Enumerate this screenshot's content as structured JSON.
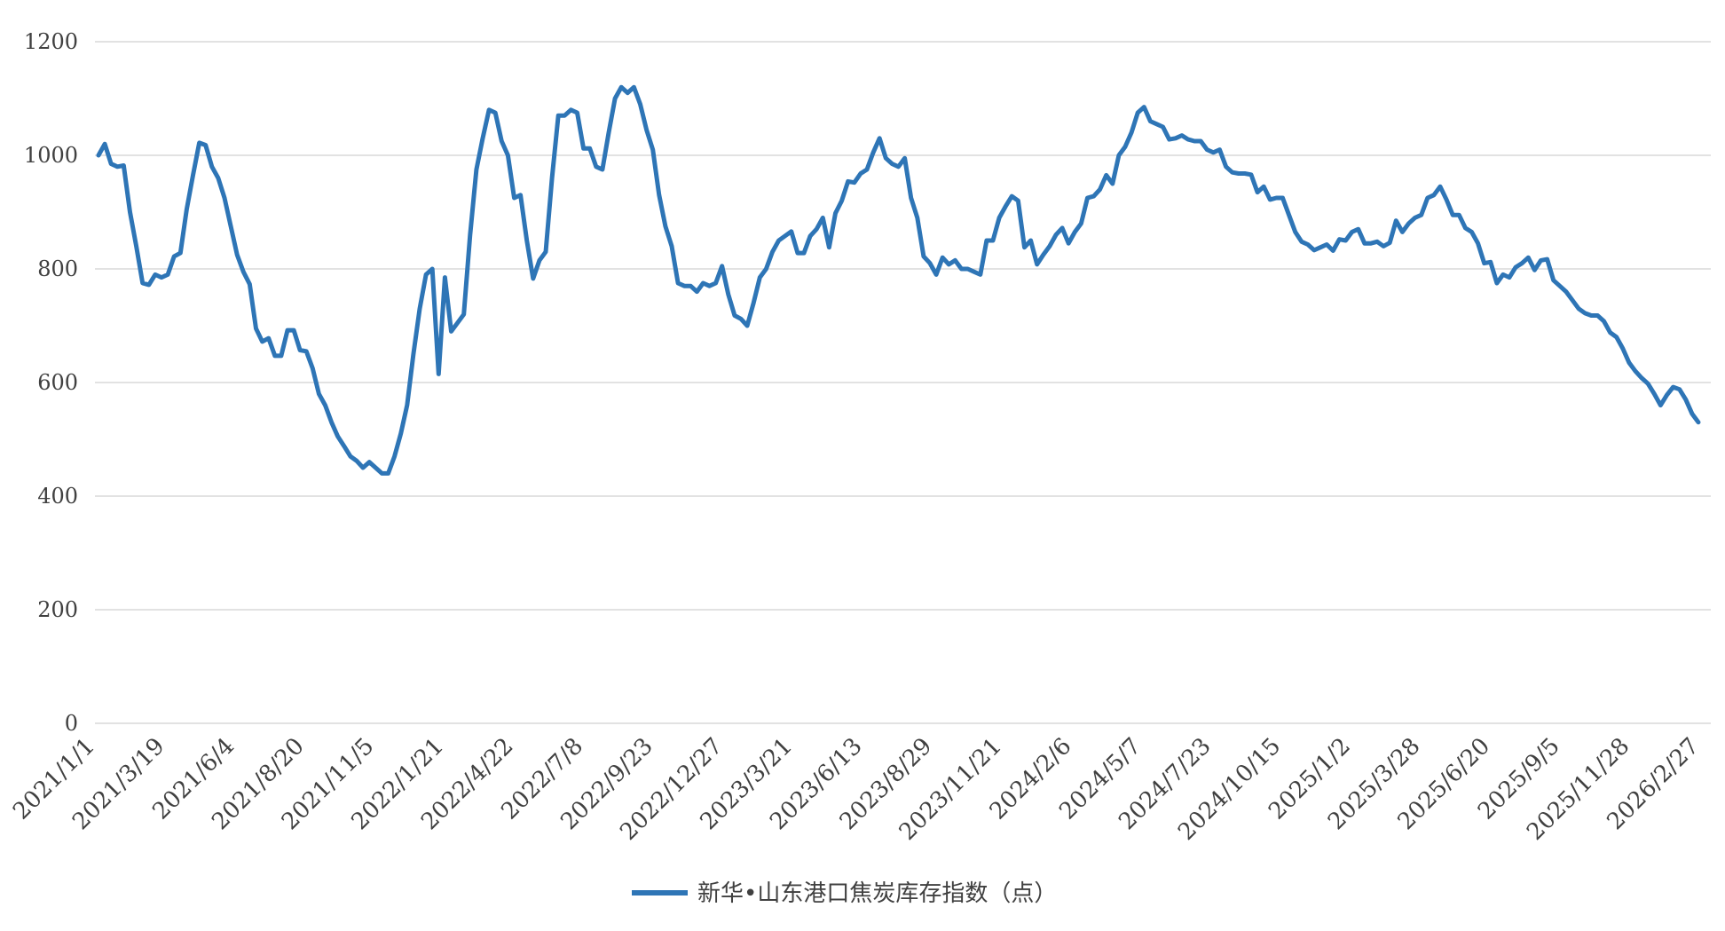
{
  "chart_data": {
    "type": "line",
    "title": "",
    "xlabel": "",
    "ylabel": "",
    "ylim": [
      0,
      1200
    ],
    "yticks": [
      0,
      200,
      400,
      600,
      800,
      1000,
      1200
    ],
    "grid": "horizontal",
    "legend_position": "bottom-center",
    "x_tick_labels": [
      "2021/1/1",
      "2021/3/19",
      "2021/6/4",
      "2021/8/20",
      "2021/11/5",
      "2022/1/21",
      "2022/4/22",
      "2022/7/8",
      "2022/9/23",
      "2022/12/27",
      "2023/3/21",
      "2023/6/13",
      "2023/8/29",
      "2023/11/21",
      "2024/2/6",
      "2024/5/7",
      "2024/7/23",
      "2024/10/15",
      "2025/1/2",
      "2025/3/28",
      "2025/6/20",
      "2025/9/5",
      "2025/11/28",
      "2026/2/27"
    ],
    "series": [
      {
        "name": "新华•山东港口焦炭库存指数（点）",
        "color": "#2E75B6",
        "values": [
          1000,
          1020,
          985,
          980,
          982,
          900,
          840,
          775,
          772,
          790,
          785,
          790,
          822,
          828,
          905,
          965,
          1022,
          1018,
          980,
          960,
          925,
          875,
          825,
          795,
          773,
          695,
          672,
          678,
          647,
          647,
          692,
          692,
          657,
          655,
          625,
          580,
          560,
          530,
          505,
          488,
          470,
          462,
          450,
          460,
          450,
          440,
          440,
          470,
          510,
          560,
          650,
          730,
          790,
          800,
          615,
          785,
          690,
          705,
          720,
          860,
          975,
          1030,
          1080,
          1075,
          1025,
          1000,
          925,
          930,
          850,
          783,
          815,
          830,
          960,
          1070,
          1070,
          1080,
          1075,
          1012,
          1012,
          980,
          975,
          1040,
          1100,
          1120,
          1110,
          1120,
          1090,
          1045,
          1010,
          930,
          875,
          840,
          775,
          770,
          770,
          760,
          775,
          770,
          775,
          805,
          755,
          718,
          712,
          700,
          740,
          785,
          800,
          830,
          850,
          858,
          866,
          828,
          828,
          858,
          870,
          890,
          838,
          898,
          920,
          954,
          952,
          968,
          975,
          1005,
          1030,
          995,
          985,
          980,
          995,
          925,
          890,
          822,
          810,
          790,
          820,
          808,
          815,
          800,
          800,
          795,
          790,
          850,
          850,
          890,
          910,
          928,
          920,
          838,
          850,
          808,
          825,
          840,
          860,
          872,
          845,
          865,
          880,
          925,
          928,
          940,
          965,
          950,
          1000,
          1015,
          1040,
          1075,
          1085,
          1060,
          1055,
          1050,
          1028,
          1030,
          1035,
          1028,
          1025,
          1025,
          1010,
          1005,
          1010,
          980,
          970,
          968,
          968,
          966,
          935,
          945,
          922,
          925,
          925,
          895,
          865,
          848,
          843,
          833,
          838,
          843,
          832,
          852,
          850,
          865,
          870,
          845,
          845,
          848,
          840,
          846,
          885,
          865,
          880,
          890,
          895,
          925,
          930,
          945,
          922,
          895,
          895,
          872,
          865,
          845,
          810,
          812,
          775,
          790,
          785,
          803,
          810,
          820,
          798,
          815,
          817,
          780,
          770,
          760,
          745,
          730,
          722,
          718,
          718,
          708,
          688,
          680,
          660,
          635,
          620,
          608,
          598,
          580,
          560,
          578,
          592,
          588,
          570,
          545,
          530
        ]
      }
    ]
  }
}
